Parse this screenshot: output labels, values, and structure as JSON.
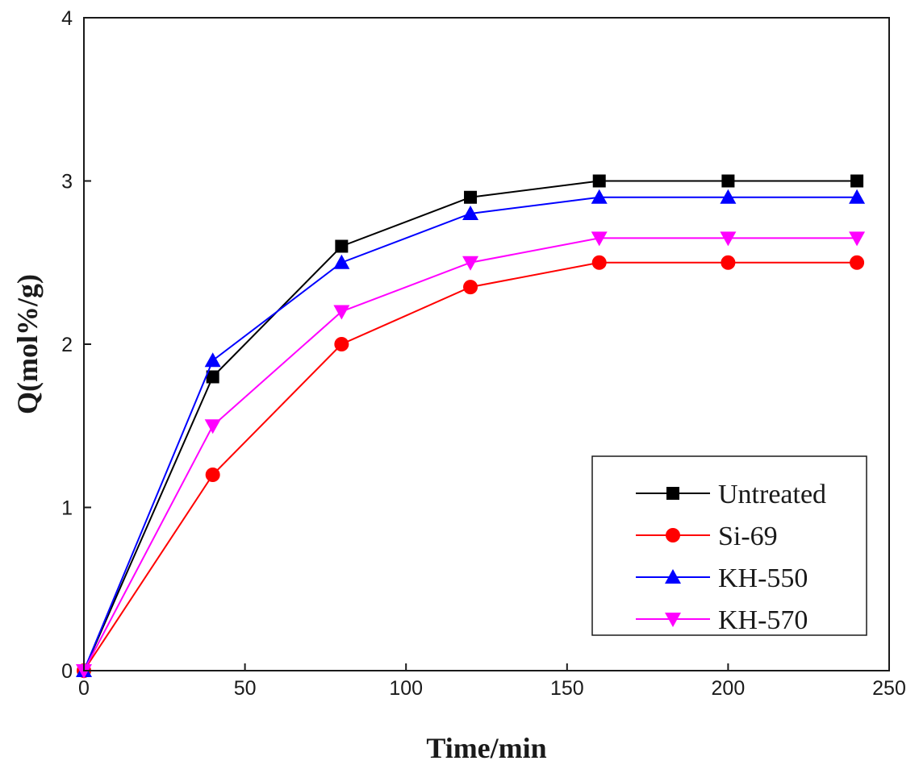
{
  "chart_data": {
    "type": "line",
    "title": "",
    "xlabel": "Time/min",
    "ylabel": "Q(mol%/g)",
    "xlim": [
      0,
      250
    ],
    "ylim": [
      0,
      4
    ],
    "xticks": [
      0,
      50,
      100,
      150,
      200,
      250
    ],
    "yticks": [
      0,
      1,
      2,
      3,
      4
    ],
    "x": [
      0,
      40,
      80,
      120,
      160,
      200,
      240
    ],
    "grid": false,
    "legend_position": "bottom-right",
    "series": [
      {
        "name": "Untreated",
        "color": "#000000",
        "marker": "square",
        "values": [
          0,
          1.8,
          2.6,
          2.9,
          3.0,
          3.0,
          3.0
        ]
      },
      {
        "name": "Si-69",
        "color": "#ff0000",
        "marker": "circle",
        "values": [
          0,
          1.2,
          2.0,
          2.35,
          2.5,
          2.5,
          2.5
        ]
      },
      {
        "name": "KH-550",
        "color": "#0000ff",
        "marker": "triangle-up",
        "values": [
          0,
          1.9,
          2.5,
          2.8,
          2.9,
          2.9,
          2.9
        ]
      },
      {
        "name": "KH-570",
        "color": "#ff00ff",
        "marker": "triangle-down",
        "values": [
          0,
          1.5,
          2.2,
          2.5,
          2.65,
          2.65,
          2.65
        ]
      }
    ]
  }
}
